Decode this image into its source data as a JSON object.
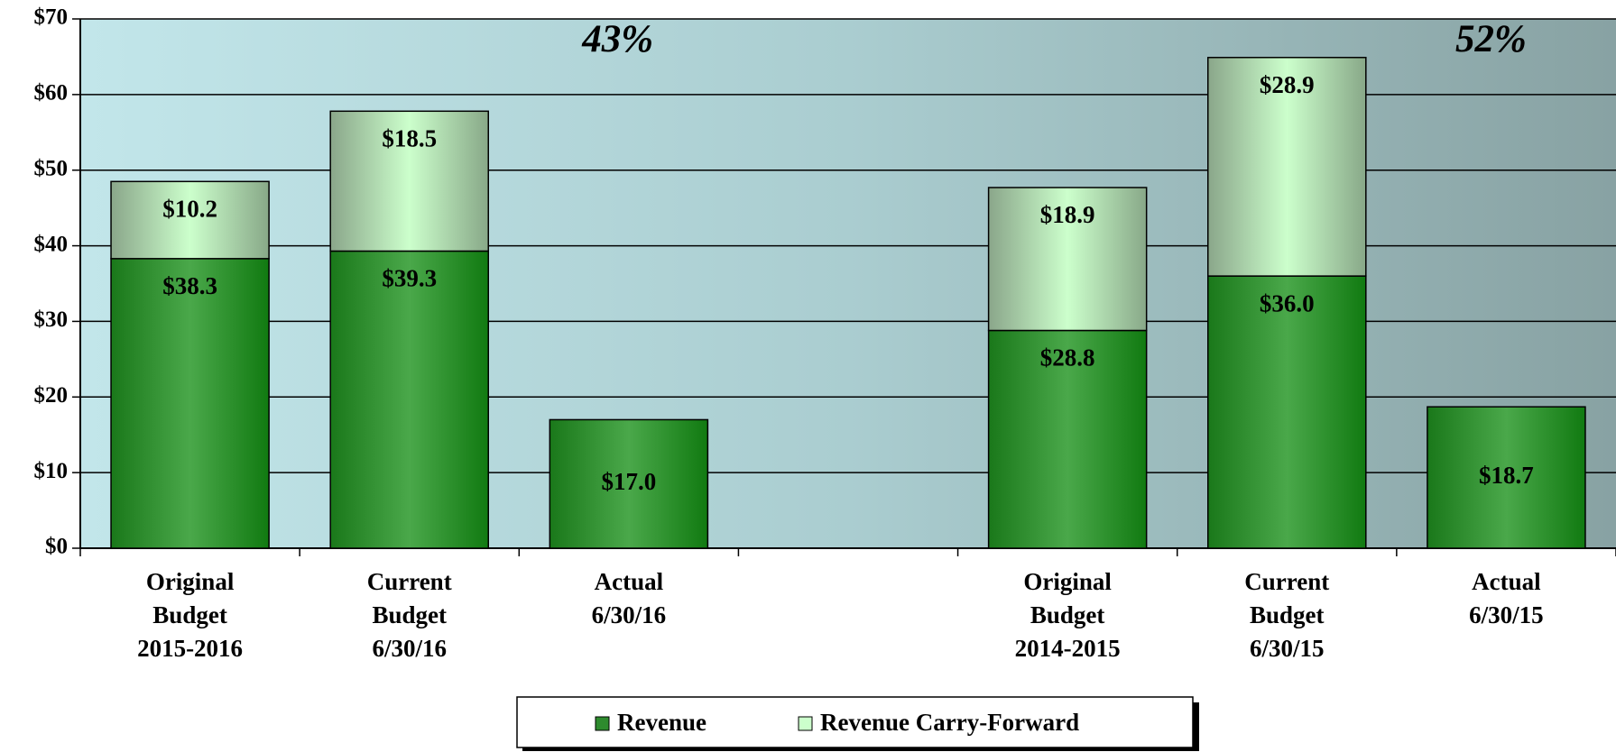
{
  "chart_data": {
    "type": "stacked_bar",
    "categories": [
      "Original\nBudget\n2015-2016",
      "Current\nBudget\n6/30/16",
      "Actual\n6/30/16",
      null,
      "Original\nBudget\n2014-2015",
      "Current\nBudget\n6/30/15",
      "Actual\n6/30/15"
    ],
    "series": [
      {
        "name": "Revenue",
        "color": "#2e8b2e",
        "values": [
          38.3,
          39.3,
          17.0,
          null,
          28.8,
          36.0,
          18.7
        ],
        "value_labels": [
          "$38.3",
          "$39.3",
          "$17.0",
          null,
          "$28.8",
          "$36.0",
          "$18.7"
        ]
      },
      {
        "name": "Revenue Carry-Forward",
        "color": "#ccffcc",
        "values": [
          10.2,
          18.5,
          null,
          null,
          18.9,
          28.9,
          null
        ],
        "value_labels": [
          "$10.2",
          "$18.5",
          null,
          null,
          "$18.9",
          "$28.9",
          null
        ]
      }
    ],
    "annotations": [
      "43%",
      "52%"
    ],
    "ylim": [
      0,
      70
    ],
    "yticks": [
      {
        "value": 0,
        "label": "$0"
      },
      {
        "value": 10,
        "label": "$10"
      },
      {
        "value": 20,
        "label": "$20"
      },
      {
        "value": 30,
        "label": "$30"
      },
      {
        "value": 40,
        "label": "$40"
      },
      {
        "value": 50,
        "label": "$50"
      },
      {
        "value": 60,
        "label": "$60"
      },
      {
        "value": 70,
        "label": "$70"
      }
    ],
    "grid": true,
    "legend": "bottom"
  }
}
